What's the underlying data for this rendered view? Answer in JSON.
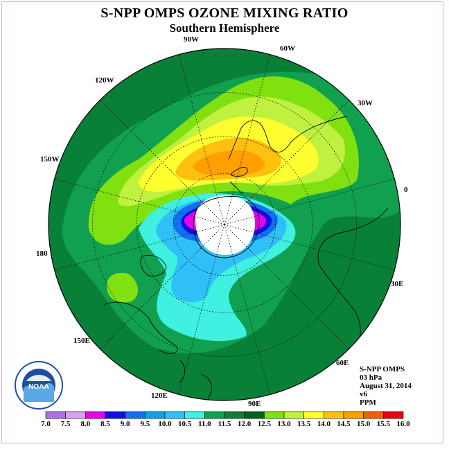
{
  "header": {
    "title": "S-NPP OMPS OZONE MIXING RATIO",
    "subtitle": "Southern Hemisphere"
  },
  "longitude_labels": {
    "w90": "90W",
    "w60": "60W",
    "w30": "30W",
    "w120": "120W",
    "w150": "150W",
    "zero": "0",
    "e180": "180",
    "e30": "30E",
    "e60": "60E",
    "e90": "90E",
    "e120": "120E",
    "e150": "150E"
  },
  "info": {
    "instrument": "S-NPP OMPS",
    "level": "03 hPa",
    "date": "August 31, 2014",
    "version": "v6",
    "units": "PPM"
  },
  "logo": {
    "text": "NOAA",
    "ring_text": "NATIONAL OCEANIC AND ATMOSPHERIC ADMINISTRATION · U.S. DEPARTMENT OF COMMERCE"
  },
  "colorbar": {
    "ticks": [
      "7.0",
      "7.5",
      "8.0",
      "8.5",
      "9.0",
      "9.5",
      "10.0",
      "10.5",
      "11.0",
      "11.5",
      "12.0",
      "12.5",
      "13.0",
      "13.5",
      "14.0",
      "14.5",
      "15.0",
      "15.5",
      "16.0"
    ],
    "colors": [
      "#b070e8",
      "#d8a0f0",
      "#e800e8",
      "#1010e0",
      "#1070f0",
      "#10a0f0",
      "#30c0f8",
      "#40f0e0",
      "#10a050",
      "#088038",
      "#006020",
      "#80e010",
      "#c0f040",
      "#ffff30",
      "#ffc010",
      "#ffa000",
      "#f06000",
      "#e80010",
      "#804020"
    ]
  },
  "map_colors": {
    "dark_green": "#088038",
    "mid_green": "#10a050",
    "lime": "#80e010",
    "yellow_green": "#c0f040",
    "yellow": "#ffff30",
    "gold": "#ffc010",
    "orange": "#ffa000",
    "cyan": "#40f0e0",
    "light_blue": "#30c0f8",
    "blue": "#1070f0",
    "dark_blue": "#1010e0",
    "magenta": "#e800e8",
    "pole": "#ffffff"
  }
}
